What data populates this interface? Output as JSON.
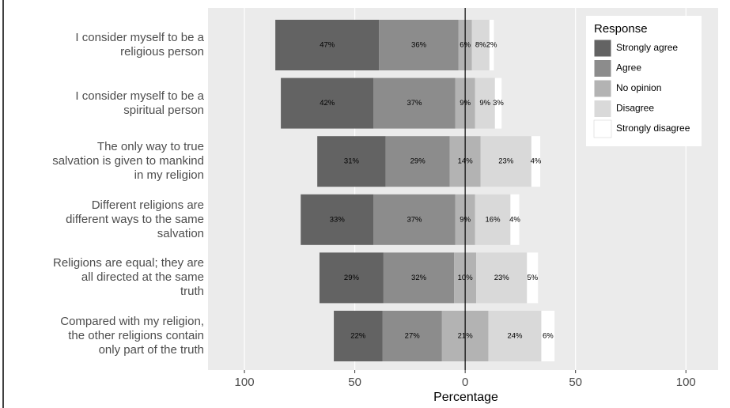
{
  "chart_data": {
    "type": "diverging-stacked-bar",
    "categories": [
      "I consider myself to be a\nreligious person",
      "I consider myself to be a\nspiritual person",
      "The only way to true\nsalvation is given to mankind\nin my religion",
      "Different religions are\ndifferent ways to the same\nsalvation",
      "Religions are equal; they are\nall directed at the same\ntruth",
      "Compared with my religion,\nthe other religions contain\nonly part of the truth"
    ],
    "series": [
      {
        "name": "Strongly agree",
        "color": "#636363",
        "values": [
          47,
          42,
          31,
          33,
          29,
          22
        ],
        "value_labels": [
          "47%",
          "42%",
          "31%",
          "33%",
          "29%",
          "22%"
        ]
      },
      {
        "name": "Agree",
        "color": "#8c8c8c",
        "values": [
          36,
          37,
          29,
          37,
          32,
          27
        ],
        "value_labels": [
          "36%",
          "37%",
          "29%",
          "37%",
          "32%",
          "27%"
        ]
      },
      {
        "name": "No opinion",
        "color": "#b3b3b3",
        "values": [
          6,
          9,
          14,
          9,
          10,
          21
        ],
        "value_labels": [
          "6%",
          "9%",
          "14%",
          "9%",
          "10%",
          "21%"
        ]
      },
      {
        "name": "Disagree",
        "color": "#d9d9d9",
        "values": [
          8,
          9,
          23,
          16,
          23,
          24
        ],
        "value_labels": [
          "8%",
          "9%",
          "23%",
          "16%",
          "23%",
          "24%"
        ]
      },
      {
        "name": "Strongly disagree",
        "color": "#ffffff",
        "values": [
          2,
          3,
          4,
          4,
          5,
          6
        ],
        "value_labels": [
          "2%",
          "3%",
          "4%",
          "4%",
          "5%",
          "6%"
        ]
      }
    ],
    "legend_title": "Response",
    "legend_position": "top-right",
    "x_label": "Percentage",
    "xlim": [
      -116.5,
      114.6
    ],
    "xticks": [
      {
        "value": -100,
        "label": "100"
      },
      {
        "value": -50,
        "label": "50"
      },
      0,
      50,
      {
        "value": 100,
        "label": "100"
      }
    ],
    "grid": true
  }
}
